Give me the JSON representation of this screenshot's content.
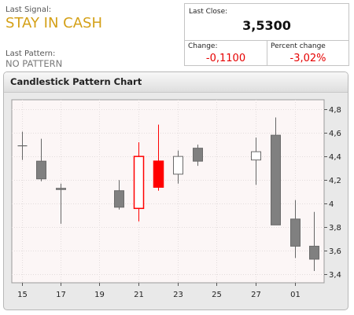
{
  "signal": {
    "label": "Last Signal:",
    "value": "STAY IN CASH"
  },
  "pattern": {
    "label": "Last Pattern:",
    "value": "NO PATTERN"
  },
  "stats": {
    "last_close_label": "Last Close:",
    "last_close_value": "3,5300",
    "change_label": "Change:",
    "change_value": "-0,1100",
    "percent_change_label": "Percent change",
    "percent_change_value": "-3,02%"
  },
  "colors": {
    "signal": "#d4a017",
    "negative": "#e60000",
    "candle_down": "#808080",
    "candle_highlight": "#ff0000"
  },
  "chart_data": {
    "type": "candlestick",
    "title": "Candlestick Pattern Chart",
    "x_ticks": [
      "15",
      "17",
      "19",
      "21",
      "23",
      "25",
      "27",
      "01"
    ],
    "y_ticks": [
      "3,4",
      "3,6",
      "3,8",
      "4",
      "4,2",
      "4,4",
      "4,6",
      "4,8"
    ],
    "y_tick_values": [
      3.4,
      3.6,
      3.8,
      4.0,
      4.2,
      4.4,
      4.6,
      4.8
    ],
    "ylim": [
      3.33,
      4.88
    ],
    "grid": true,
    "axis_position": "right",
    "candles": [
      {
        "date": "15",
        "open": 4.49,
        "close": 4.49,
        "high": 4.61,
        "low": 4.37
      },
      {
        "date": "16",
        "open": 4.36,
        "close": 4.21,
        "high": 4.55,
        "low": 4.19
      },
      {
        "date": "17",
        "open": 4.13,
        "close": 4.12,
        "high": 4.17,
        "low": 3.83
      },
      {
        "date": "20",
        "open": 4.11,
        "close": 3.97,
        "high": 4.2,
        "low": 3.95
      },
      {
        "date": "21",
        "open": 3.96,
        "close": 4.4,
        "high": 4.52,
        "low": 3.85,
        "highlight": true
      },
      {
        "date": "22",
        "open": 4.36,
        "close": 4.14,
        "high": 4.67,
        "low": 4.11,
        "highlight": true
      },
      {
        "date": "23",
        "open": 4.25,
        "close": 4.4,
        "high": 4.45,
        "low": 4.17
      },
      {
        "date": "24",
        "open": 4.47,
        "close": 4.36,
        "high": 4.5,
        "low": 4.32
      },
      {
        "date": "27",
        "open": 4.37,
        "close": 4.44,
        "high": 4.56,
        "low": 4.16
      },
      {
        "date": "28",
        "open": 4.58,
        "close": 3.82,
        "high": 4.73,
        "low": 3.82
      },
      {
        "date": "29",
        "open": 3.87,
        "close": 3.64,
        "high": 4.03,
        "low": 3.54
      },
      {
        "date": "01",
        "open": 3.64,
        "close": 3.53,
        "high": 3.93,
        "low": 3.43
      }
    ]
  }
}
